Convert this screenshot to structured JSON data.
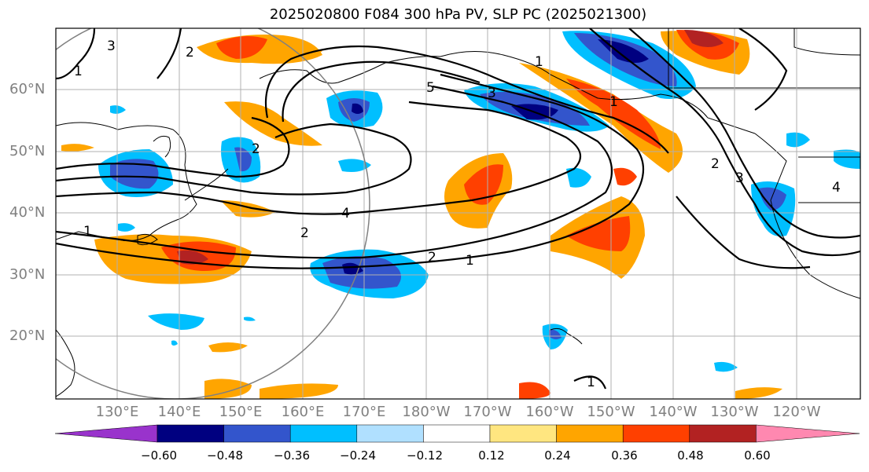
{
  "title": "2025020800 F084 300 hPa PV, SLP PC (2025021300)",
  "lat_labels": [
    "60°N",
    "50°N",
    "40°N",
    "30°N",
    "20°N"
  ],
  "lon_labels": [
    "130°E",
    "140°E",
    "150°E",
    "160°E",
    "170°E",
    "180°W",
    "170°W",
    "160°W",
    "150°W",
    "140°W",
    "130°W",
    "120°W"
  ],
  "colorbar": {
    "ticks": [
      "−0.60",
      "−0.48",
      "−0.36",
      "−0.24",
      "−0.12",
      "0.12",
      "0.24",
      "0.36",
      "0.48",
      "0.60"
    ],
    "colors": [
      "#9933cc",
      "#000080",
      "#3355cc",
      "#00bfff",
      "#b0e0ff",
      "#ffffff",
      "#ffe680",
      "#ffa500",
      "#ff4000",
      "#b22222",
      "#ff88b0"
    ]
  },
  "contour_labels": [
    "5",
    "4",
    "3",
    "2",
    "1",
    "2",
    "3",
    "1",
    "1",
    "2",
    "3",
    "1",
    "4",
    "2",
    "1",
    "2",
    "1"
  ]
}
